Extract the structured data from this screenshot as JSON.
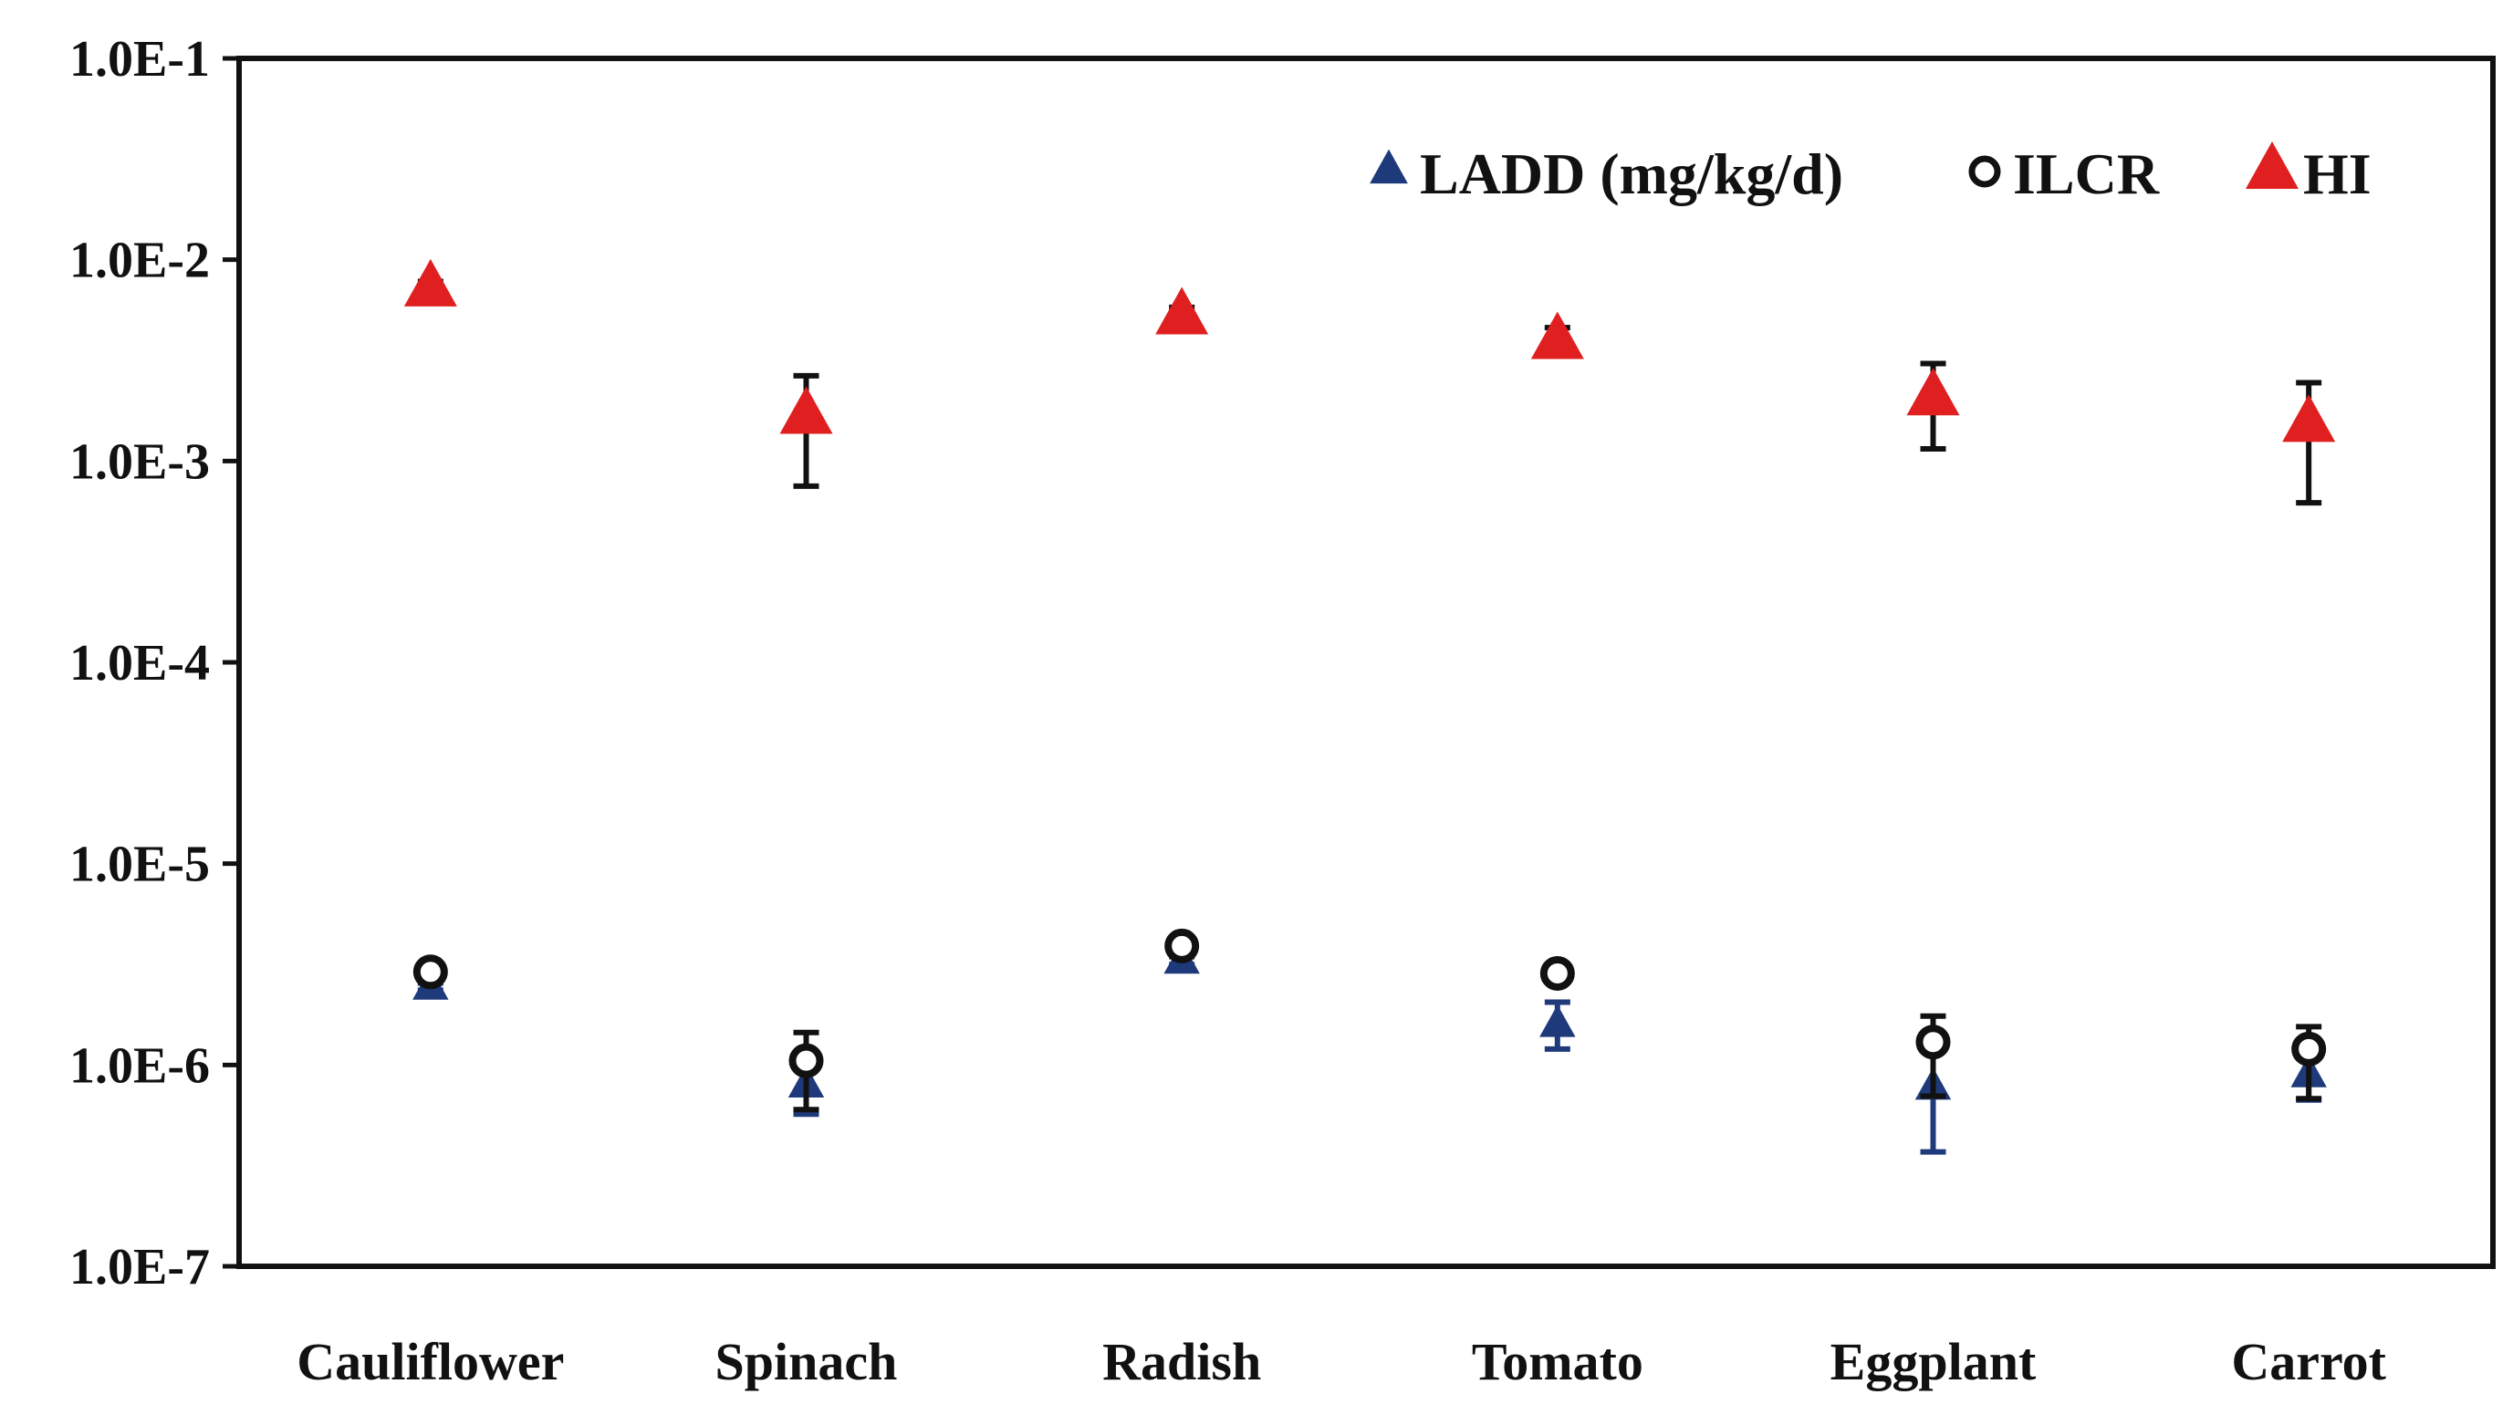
{
  "chart_data": {
    "type": "scatter",
    "title": "",
    "xlabel": "",
    "ylabel": "",
    "yscale": "log",
    "ylim": [
      1e-07,
      0.1
    ],
    "yticks": [
      {
        "value": 0.1,
        "label": "1.0E-1"
      },
      {
        "value": 0.01,
        "label": "1.0E-2"
      },
      {
        "value": 0.001,
        "label": "1.0E-3"
      },
      {
        "value": 0.0001,
        "label": "1.0E-4"
      },
      {
        "value": 1e-05,
        "label": "1.0E-5"
      },
      {
        "value": 1e-06,
        "label": "1.0E-6"
      },
      {
        "value": 1e-07,
        "label": "1.0E-7"
      }
    ],
    "categories": [
      "Cauliflower",
      "Spinach",
      "Radish",
      "Tomato",
      "Eggplant",
      "Carrot"
    ],
    "grid": false,
    "legend_position": "top-right",
    "series": [
      {
        "name": "LADD (mg/kg/d)",
        "marker": "triangle",
        "color": "#1f3a7a",
        "values": [
          2.45e-06,
          8e-07,
          3.3e-06,
          1.6e-06,
          7.8e-07,
          9e-07
        ],
        "err_low": [
          2.35e-06,
          5.7e-07,
          3.15e-06,
          1.2e-06,
          3.7e-07,
          6.7e-07
        ],
        "err_high": [
          2.55e-06,
          1.05e-06,
          3.45e-06,
          2.05e-06,
          1.2e-06,
          1.2e-06
        ]
      },
      {
        "name": "ILCR",
        "marker": "circle-open",
        "color": "#111111",
        "values": [
          2.9e-06,
          1.05e-06,
          3.9e-06,
          2.85e-06,
          1.3e-06,
          1.2e-06
        ],
        "err_low": [
          2.75e-06,
          6e-07,
          3.7e-06,
          2.65e-06,
          7e-07,
          6.8e-07
        ],
        "err_high": [
          3.05e-06,
          1.45e-06,
          4.1e-06,
          3.05e-06,
          1.75e-06,
          1.55e-06
        ]
      },
      {
        "name": "HI",
        "marker": "triangle",
        "color": "#e02020",
        "values": [
          0.0073,
          0.0017,
          0.0053,
          0.004,
          0.0021,
          0.00155
        ],
        "err_low": [
          0.0068,
          0.00075,
          0.0049,
          0.0035,
          0.00115,
          0.00062
        ],
        "err_high": [
          0.0078,
          0.00265,
          0.0058,
          0.0046,
          0.00305,
          0.00245
        ]
      }
    ]
  }
}
